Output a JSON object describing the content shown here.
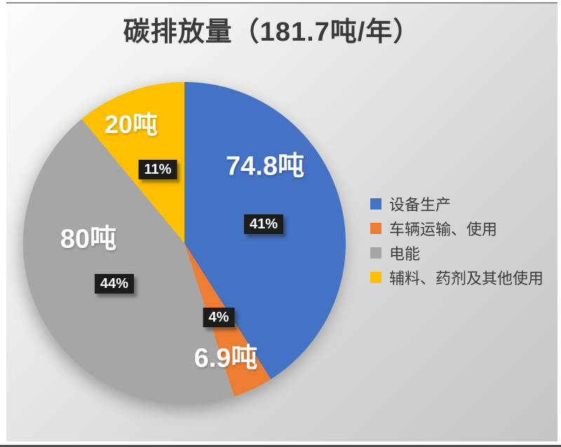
{
  "chart_data": {
    "type": "pie",
    "title": "碳排放量（181.7吨/年）",
    "total_tons_per_year": 181.7,
    "rotation_start": "top",
    "direction": "clockwise",
    "legend_position": "right",
    "slices": [
      {
        "name": "设备生产",
        "value_tons": 74.8,
        "value_label": "74.8吨",
        "percent": 41,
        "pct_label": "41%",
        "color": "#4472C4"
      },
      {
        "name": "车辆运输、使用",
        "value_tons": 6.9,
        "value_label": "6.9吨",
        "percent": 4,
        "pct_label": "4%",
        "color": "#ED7D31"
      },
      {
        "name": "电能",
        "value_tons": 80,
        "value_label": "80吨",
        "percent": 44,
        "pct_label": "44%",
        "color": "#A6A6A6"
      },
      {
        "name": "辅料、药剂及其他使用",
        "value_tons": 20,
        "value_label": "20吨",
        "percent": 11,
        "pct_label": "11%",
        "color": "#FFC000"
      }
    ]
  }
}
